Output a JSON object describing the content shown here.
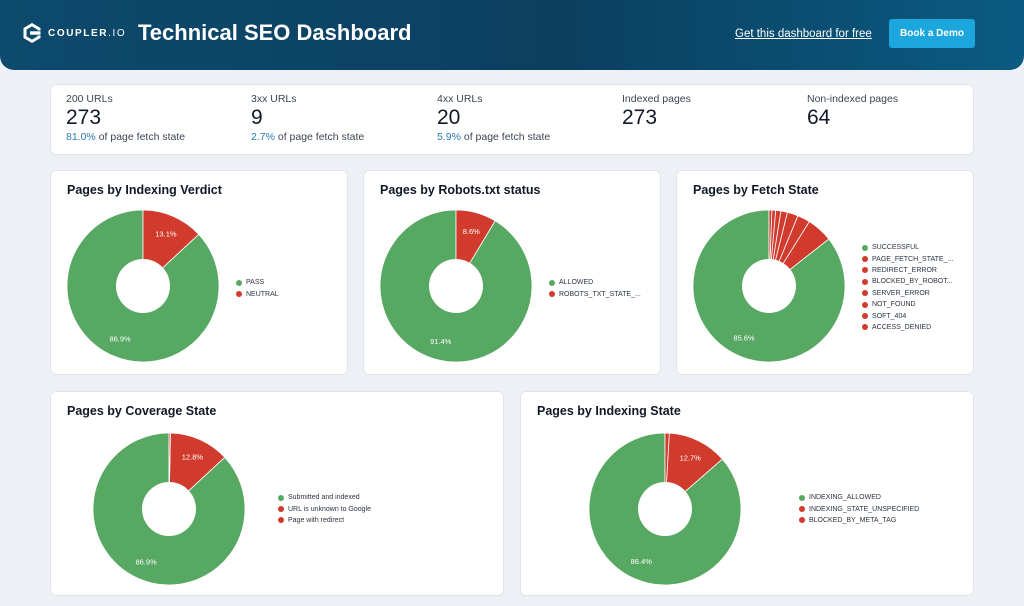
{
  "header": {
    "logo_text_bold": "COUPLER",
    "logo_text_light": ".IO",
    "logo_icon": "coupler-logo-icon",
    "title": "Technical SEO Dashboard",
    "link_label": "Get this dashboard for free",
    "button_label": "Book a Demo"
  },
  "colors": {
    "green": "#57a862",
    "red": "#d13b2d",
    "header": "#0d4a6d",
    "accent": "#1ba6dd"
  },
  "kpis": [
    {
      "label": "200 URLs",
      "value": "273",
      "pct": "81.0%",
      "sub": " of page fetch state"
    },
    {
      "label": "3xx URLs",
      "value": "9",
      "pct": "2.7%",
      "sub": " of page fetch state"
    },
    {
      "label": "4xx URLs",
      "value": "20",
      "pct": "5.9%",
      "sub": " of page fetch state"
    },
    {
      "label": "Indexed pages",
      "value": "273"
    },
    {
      "label": "Non-indexed pages",
      "value": "64"
    }
  ],
  "chart_data": [
    {
      "type": "pie",
      "title": "Pages by Indexing Verdict",
      "categories": [
        "PASS",
        "NEUTRAL"
      ],
      "values": [
        86.9,
        13.1
      ],
      "data_labels": [
        "86.9%",
        "13.1%"
      ],
      "colors": [
        "#57a862",
        "#d13b2d"
      ],
      "legend": "right"
    },
    {
      "type": "pie",
      "title": "Pages by Robots.txt status",
      "categories": [
        "ALLOWED",
        "ROBOTS_TXT_STATE_..."
      ],
      "values": [
        91.4,
        8.6
      ],
      "data_labels": [
        "91.4%",
        "8.6%"
      ],
      "colors": [
        "#57a862",
        "#d13b2d"
      ],
      "legend": "right"
    },
    {
      "type": "pie",
      "title": "Pages by Fetch State",
      "categories": [
        "SUCCESSFUL",
        "PAGE_FETCH_STATE_...",
        "REDIRECT_ERROR",
        "BLOCKED_BY_ROBOT...",
        "SERVER_ERROR",
        "NOT_FOUND",
        "SOFT_404",
        "ACCESS_DENIED"
      ],
      "values": [
        85.6,
        5.5,
        2.7,
        2.3,
        1.4,
        1.1,
        0.8,
        0.6
      ],
      "data_labels": [
        "85.6%",
        "",
        "",
        "",
        "",
        "",
        "",
        ""
      ],
      "colors": [
        "#57a862",
        "#d13b2d",
        "#d13b2d",
        "#d13b2d",
        "#d13b2d",
        "#d13b2d",
        "#d13b2d",
        "#d13b2d"
      ],
      "legend": "right"
    },
    {
      "type": "pie",
      "title": "Pages by Coverage State",
      "categories": [
        "Submitted and indexed",
        "URL is unknown to Google",
        "Page with redirect"
      ],
      "values": [
        86.9,
        12.8,
        0.3
      ],
      "data_labels": [
        "86.9%",
        "12.8%",
        ""
      ],
      "colors": [
        "#57a862",
        "#d13b2d",
        "#d13b2d"
      ],
      "legend": "right"
    },
    {
      "type": "pie",
      "title": "Pages by Indexing State",
      "categories": [
        "INDEXING_ALLOWED",
        "INDEXING_STATE_UNSPECIFIED",
        "BLOCKED_BY_META_TAG"
      ],
      "values": [
        86.4,
        12.7,
        0.9
      ],
      "data_labels": [
        "86.4%",
        "12.7%",
        ""
      ],
      "colors": [
        "#57a862",
        "#d13b2d",
        "#d13b2d"
      ],
      "legend": "right"
    }
  ]
}
